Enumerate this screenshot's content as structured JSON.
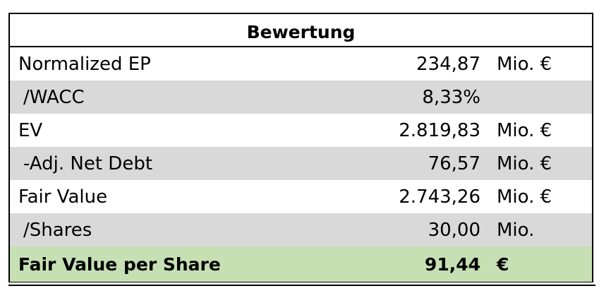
{
  "table": {
    "title": "Bewertung",
    "rows": [
      {
        "label": "Normalized EP",
        "value": "234,87",
        "unit": "Mio. €"
      },
      {
        "label": "/WACC",
        "value": "8,33%",
        "unit": ""
      },
      {
        "label": "EV",
        "value": "2.819,83",
        "unit": "Mio. €"
      },
      {
        "label": "-Adj. Net Debt",
        "value": "76,57",
        "unit": "Mio. €"
      },
      {
        "label": "Fair Value",
        "value": "2.743,26",
        "unit": "Mio. €"
      },
      {
        "label": "/Shares",
        "value": "30,00",
        "unit": "Mio."
      }
    ],
    "total": {
      "label": "Fair Value per Share",
      "value": "91,44",
      "unit": "€"
    },
    "colors": {
      "shade": "#d9d9d9",
      "total_fill": "#c6e0b4",
      "border": "#000000"
    }
  }
}
